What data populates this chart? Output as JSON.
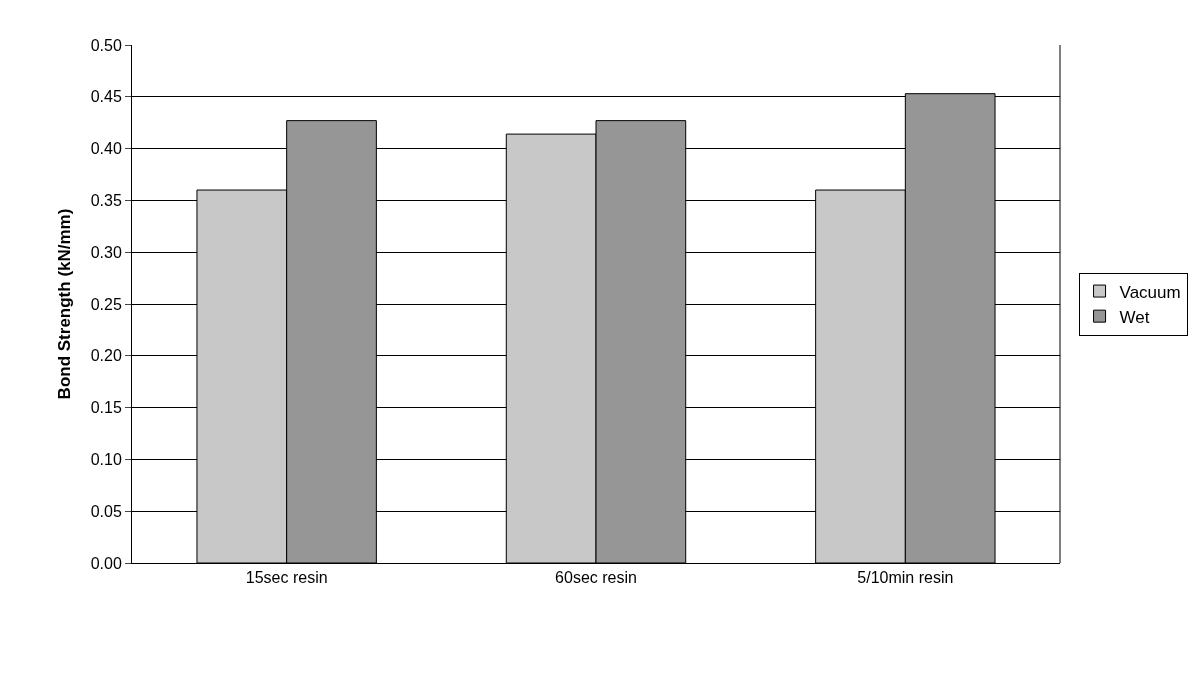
{
  "chart_data": {
    "type": "bar",
    "ylabel": "Bond Strength (kN/mm)",
    "categories": [
      "15sec resin",
      "60sec resin",
      "5/10min resin"
    ],
    "series": [
      {
        "name": "Vacuum",
        "color": "#c8c8c8",
        "values": [
          0.36,
          0.414,
          0.36
        ]
      },
      {
        "name": "Wet",
        "color": "#969696",
        "values": [
          0.427,
          0.427,
          0.453
        ]
      }
    ],
    "ylim": [
      0,
      0.5
    ],
    "yticks": [
      {
        "value": 0,
        "label": "0.00"
      },
      {
        "value": 0.05,
        "label": "0.05"
      },
      {
        "value": 0.1,
        "label": "0.10"
      },
      {
        "value": 0.15,
        "label": "0.15"
      },
      {
        "value": 0.2,
        "label": "0.20"
      },
      {
        "value": 0.25,
        "label": "0.25"
      },
      {
        "value": 0.3,
        "label": "0.30"
      },
      {
        "value": 0.35,
        "label": "0.35"
      },
      {
        "value": 0.4,
        "label": "0.40"
      },
      {
        "value": 0.45,
        "label": "0.45"
      },
      {
        "value": 0.5,
        "label": "0.50"
      }
    ],
    "grid": "y",
    "legend": "right"
  }
}
